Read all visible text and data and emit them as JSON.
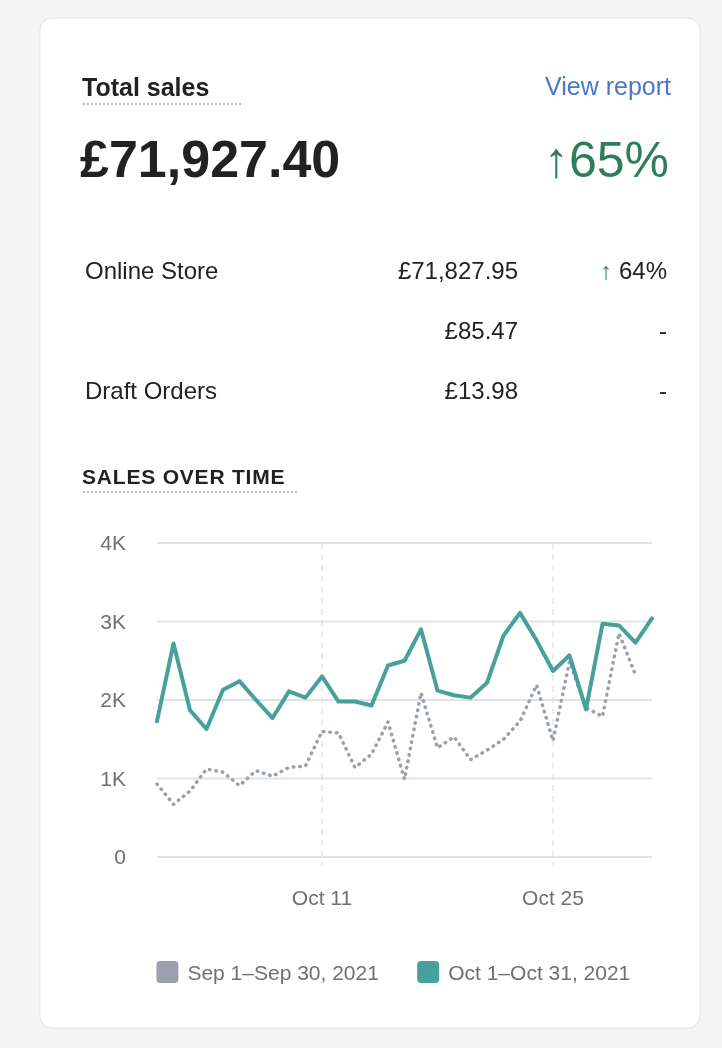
{
  "chart_data": [
    {
      "type": "other",
      "title": "Total sales",
      "annotations": [
        "View report",
        "£71,927.40",
        "↑65%",
        "Online Store",
        "£71,827.95",
        "↑ 64%",
        "£85.47",
        "-",
        "Draft Orders",
        "£13.98",
        "-"
      ]
    },
    {
      "type": "line",
      "title": "SALES OVER TIME",
      "categories": [
        null,
        null,
        null,
        null,
        null,
        null,
        null,
        null,
        null,
        null,
        "Oct 11",
        null,
        null,
        null,
        null,
        null,
        null,
        null,
        null,
        null,
        null,
        null,
        null,
        null,
        "Oct 25",
        null,
        null,
        null,
        null,
        null,
        null
      ],
      "series": [
        {
          "name": "Sep 1–Sep 30, 2021",
          "color": "#9aa0ac",
          "line_style": "dotted",
          "values": [
            930,
            670,
            840,
            1120,
            1080,
            910,
            1100,
            1030,
            1140,
            1160,
            1600,
            1580,
            1140,
            1310,
            1720,
            990,
            2090,
            1390,
            1530,
            1240,
            1360,
            1500,
            1730,
            2190,
            1480,
            2490,
            1900,
            1790,
            2850,
            2320,
            null
          ]
        },
        {
          "name": "Oct 1–Oct 31, 2021",
          "color": "#47a09b",
          "line_style": "solid",
          "values": [
            1730,
            2720,
            1870,
            1630,
            2130,
            2240,
            2000,
            1770,
            2110,
            2030,
            2300,
            1980,
            1980,
            1930,
            2440,
            2500,
            2900,
            2120,
            2060,
            2030,
            2220,
            2820,
            3110,
            2760,
            2370,
            2570,
            1880,
            2970,
            2950,
            2730,
            3040
          ]
        }
      ],
      "ylim": [
        0,
        4000
      ],
      "yticks": [
        0,
        {
          "value": 1000,
          "label": "1K"
        },
        {
          "value": 2000,
          "label": "2K"
        },
        {
          "value": 3000,
          "label": "3K"
        },
        {
          "value": 4000,
          "label": "4K"
        }
      ],
      "grid": true,
      "legend": "bottom",
      "marker": "none"
    }
  ]
}
